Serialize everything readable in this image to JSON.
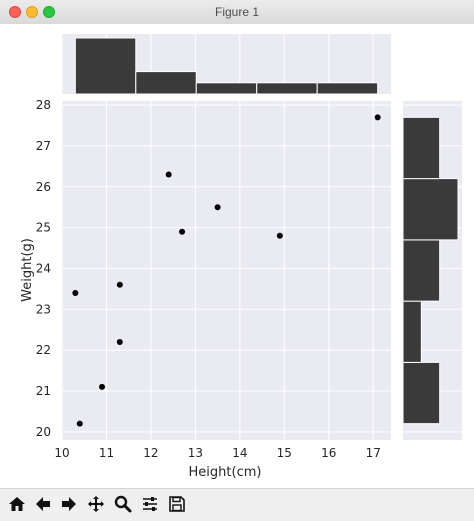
{
  "window": {
    "title": "Figure 1"
  },
  "toolbar": {
    "tools": [
      "home-icon",
      "back-icon",
      "forward-icon",
      "pan-icon",
      "zoom-icon",
      "configure-subplots-icon",
      "save-icon"
    ]
  },
  "colors": {
    "plot_bg": "#eaeaf2",
    "bar": "#3a3a3a",
    "point": "#000000",
    "grid": "#ffffff"
  },
  "chart_data": {
    "type": "scatter",
    "title": "",
    "xlabel": "Height(cm)",
    "ylabel": "Weight(g)",
    "xlim": [
      10,
      17.4
    ],
    "ylim": [
      19.8,
      28.1
    ],
    "xticks": [
      "10",
      "11",
      "12",
      "13",
      "14",
      "15",
      "16",
      "17"
    ],
    "yticks": [
      "20",
      "21",
      "22",
      "23",
      "24",
      "25",
      "26",
      "27",
      "28"
    ],
    "grid": true,
    "points": [
      {
        "x": 10.3,
        "y": 23.4
      },
      {
        "x": 10.4,
        "y": 20.2
      },
      {
        "x": 10.9,
        "y": 21.1
      },
      {
        "x": 11.3,
        "y": 23.6
      },
      {
        "x": 11.3,
        "y": 22.2
      },
      {
        "x": 12.4,
        "y": 26.3
      },
      {
        "x": 12.7,
        "y": 24.9
      },
      {
        "x": 13.5,
        "y": 25.5
      },
      {
        "x": 14.9,
        "y": 24.8
      },
      {
        "x": 17.1,
        "y": 27.7
      }
    ],
    "marginal_x": {
      "type": "histogram",
      "bin_edges": [
        10.3,
        11.66,
        13.02,
        14.38,
        15.74,
        17.1
      ],
      "counts": [
        5,
        2,
        1,
        1,
        1
      ]
    },
    "marginal_y": {
      "type": "histogram",
      "bin_edges": [
        20.2,
        21.7,
        23.2,
        24.7,
        26.2,
        27.7
      ],
      "counts": [
        2,
        1,
        2,
        3,
        2
      ]
    }
  }
}
